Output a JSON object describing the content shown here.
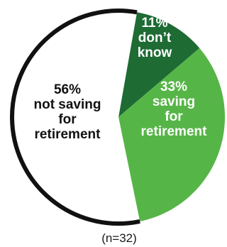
{
  "chart_data": {
    "type": "pie",
    "slices": [
      {
        "label_lines": [
          "11%",
          "don’t",
          "know"
        ],
        "value": 11,
        "color": "#1e6b34",
        "text_color": "#ffffff"
      },
      {
        "label_lines": [
          "33%",
          "saving",
          "for",
          "retirement"
        ],
        "value": 33,
        "color": "#56b547",
        "text_color": "#ffffff"
      },
      {
        "label_lines": [
          "56%",
          "not saving",
          "for",
          "retirement"
        ],
        "value": 56,
        "color": "#ffffff",
        "text_color": "#111111"
      }
    ],
    "note": "(n=32)",
    "outline_color": "#111111"
  }
}
